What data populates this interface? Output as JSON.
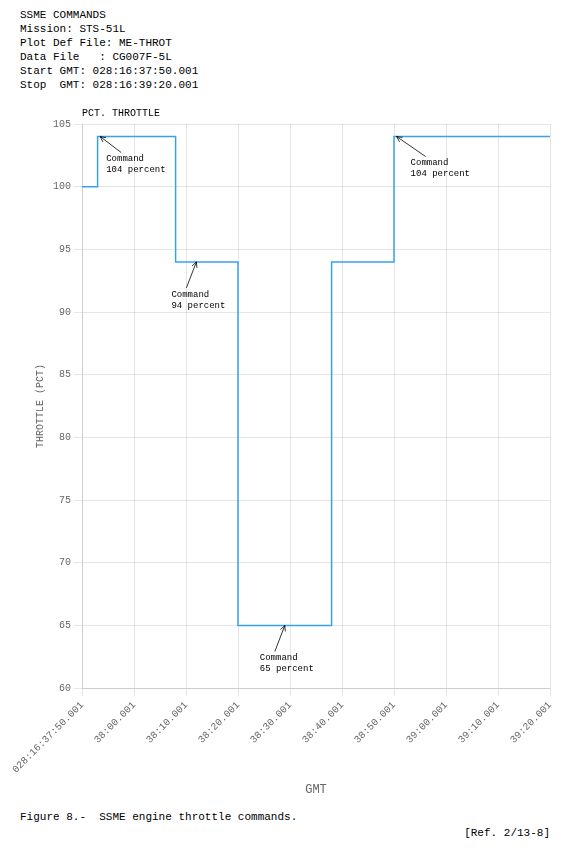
{
  "chart_data": {
    "type": "line",
    "title": "SSME COMMANDS",
    "subtitle": [
      "Mission: STS-51L",
      "Plot Def File: ME-THROT",
      "Data File   : CG007F-5L",
      "Start GMT: 028:16:37:50.001",
      "Stop  GMT: 028:16:39:20.001"
    ],
    "xlabel": "GMT",
    "ylabel": "THROTTLE (PCT)",
    "ylabel_top": "PCT. THROTTLE",
    "caption": "Figure 8.-  SSME engine throttle commands.",
    "source": "[Ref. 2/13-8]",
    "x": [
      0,
      3,
      3,
      18,
      18,
      30,
      30,
      48,
      48,
      60,
      60,
      90
    ],
    "values": [
      100,
      100,
      104,
      104,
      94,
      94,
      65,
      65,
      94,
      94,
      104,
      104
    ],
    "xlim": [
      0,
      90
    ],
    "xticks": [
      {
        "value": 0,
        "label": "028:16:37:50.001"
      },
      {
        "value": 10,
        "label": "38:00.001"
      },
      {
        "value": 20,
        "label": "38:10.001"
      },
      {
        "value": 30,
        "label": "38:20.001"
      },
      {
        "value": 40,
        "label": "38:30.001"
      },
      {
        "value": 50,
        "label": "38:40.001"
      },
      {
        "value": 60,
        "label": "38:50.001"
      },
      {
        "value": 70,
        "label": "39:00.001"
      },
      {
        "value": 80,
        "label": "39:10.001"
      },
      {
        "value": 90,
        "label": "39:20.001"
      }
    ],
    "ylim": [
      60,
      105
    ],
    "yticks": [
      60,
      65,
      70,
      75,
      80,
      85,
      90,
      95,
      100,
      105
    ],
    "grid": true,
    "annotations": [
      {
        "text": "Command\n104 percent",
        "x": 3.5,
        "y": 104
      },
      {
        "text": "Command\n94 percent",
        "x": 22,
        "y": 94
      },
      {
        "text": "Command\n65 percent",
        "x": 39,
        "y": 65
      },
      {
        "text": "Command\n104 percent",
        "x": 60.5,
        "y": 104
      }
    ]
  }
}
